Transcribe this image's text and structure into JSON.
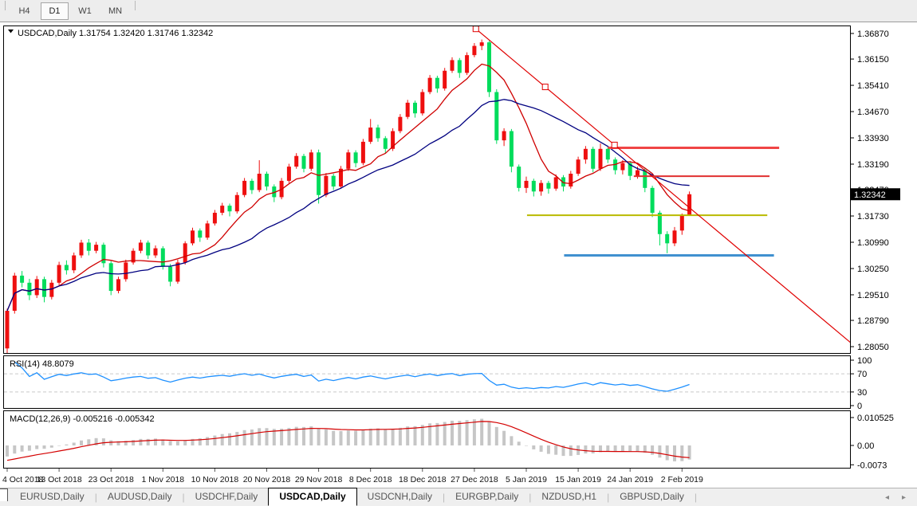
{
  "toolbar": {
    "timeframes": [
      {
        "label": "H4",
        "active": false
      },
      {
        "label": "D1",
        "active": true
      },
      {
        "label": "W1",
        "active": false
      },
      {
        "label": "MN",
        "active": false
      }
    ]
  },
  "window": {
    "title_line": "USDCAD,Daily  1.31754 1.32420 1.31746 1.32342"
  },
  "chart_data": {
    "type": "candlestick",
    "symbol": "USDCAD",
    "period": "Daily",
    "ohlc_display": {
      "open": "1.31754",
      "high": "1.32420",
      "low": "1.31746",
      "close": "1.32342"
    },
    "colors": {
      "up": "#ee0f0f",
      "down": "#00dc5c",
      "sma_fast": "#cf0000",
      "sma_slow": "#000080",
      "rsi": "#1e90ff",
      "rsi_level": "#c9c9c9",
      "macd_bar": "#c6c6c6",
      "macd_signal": "#d40000",
      "trendline": "#e00000",
      "price_tag_bg": "#000000",
      "price_tag_text": "#ffffff"
    },
    "price_axis": {
      "ticks": [
        "1.36870",
        "1.36150",
        "1.35410",
        "1.34670",
        "1.33930",
        "1.33190",
        "1.32470",
        "1.31730",
        "1.30990",
        "1.30250",
        "1.29510",
        "1.28790",
        "1.28050"
      ],
      "current": 1.32342,
      "current_label": "1.32342"
    },
    "date_axis": {
      "labels": [
        "4 Oct 2018",
        "13 Oct 2018",
        "23 Oct 2018",
        "1 Nov 2018",
        "10 Nov 2018",
        "20 Nov 2018",
        "29 Nov 2018",
        "8 Dec 2018",
        "18 Dec 2018",
        "27 Dec 2018",
        "5 Jan 2019",
        "15 Jan 2019",
        "24 Jan 2019",
        "2 Feb 2019"
      ],
      "bars_per_tick": 7
    },
    "candles": [
      [
        1.28,
        1.2912,
        1.2778,
        1.2906
      ],
      [
        1.2906,
        1.3013,
        1.2898,
        1.3005
      ],
      [
        1.3005,
        1.3018,
        1.2972,
        1.2985
      ],
      [
        1.2985,
        1.2996,
        1.2936,
        1.295
      ],
      [
        1.295,
        1.3004,
        1.2942,
        1.2995
      ],
      [
        1.2995,
        1.3002,
        1.293,
        1.2945
      ],
      [
        1.2945,
        1.2993,
        1.2938,
        1.2985
      ],
      [
        1.2985,
        1.3044,
        1.2978,
        1.3035
      ],
      [
        1.3035,
        1.3048,
        1.3008,
        1.302
      ],
      [
        1.302,
        1.307,
        1.3012,
        1.3062
      ],
      [
        1.3062,
        1.3106,
        1.3055,
        1.3098
      ],
      [
        1.3098,
        1.3108,
        1.3062,
        1.3075
      ],
      [
        1.3075,
        1.31,
        1.3068,
        1.3092
      ],
      [
        1.3092,
        1.3098,
        1.3028,
        1.304
      ],
      [
        1.304,
        1.3046,
        1.295,
        1.2962
      ],
      [
        1.2962,
        1.3002,
        1.2955,
        1.2995
      ],
      [
        1.2995,
        1.305,
        1.2988,
        1.3042
      ],
      [
        1.3042,
        1.3082,
        1.3036,
        1.3075
      ],
      [
        1.3075,
        1.3106,
        1.3068,
        1.3098
      ],
      [
        1.3098,
        1.3104,
        1.3052,
        1.3062
      ],
      [
        1.3062,
        1.309,
        1.3055,
        1.3082
      ],
      [
        1.3082,
        1.3088,
        1.3022,
        1.303
      ],
      [
        1.303,
        1.3038,
        1.2975,
        1.2988
      ],
      [
        1.2988,
        1.305,
        1.2982,
        1.3042
      ],
      [
        1.3042,
        1.3102,
        1.3036,
        1.3096
      ],
      [
        1.3096,
        1.314,
        1.309,
        1.3132
      ],
      [
        1.3132,
        1.3138,
        1.31,
        1.3112
      ],
      [
        1.3112,
        1.316,
        1.3106,
        1.3152
      ],
      [
        1.3152,
        1.319,
        1.3146,
        1.3182
      ],
      [
        1.3182,
        1.321,
        1.3175,
        1.3202
      ],
      [
        1.3202,
        1.3208,
        1.3172,
        1.3186
      ],
      [
        1.3186,
        1.324,
        1.318,
        1.3232
      ],
      [
        1.3232,
        1.328,
        1.3226,
        1.3272
      ],
      [
        1.3272,
        1.3278,
        1.3235,
        1.3246
      ],
      [
        1.3246,
        1.333,
        1.324,
        1.3292
      ],
      [
        1.3292,
        1.3298,
        1.3245,
        1.3256
      ],
      [
        1.3256,
        1.3262,
        1.3212,
        1.3226
      ],
      [
        1.3226,
        1.328,
        1.322,
        1.3272
      ],
      [
        1.3272,
        1.332,
        1.3266,
        1.3312
      ],
      [
        1.3312,
        1.335,
        1.3306,
        1.3342
      ],
      [
        1.3342,
        1.3348,
        1.3296,
        1.3306
      ],
      [
        1.3306,
        1.336,
        1.33,
        1.3352
      ],
      [
        1.3352,
        1.336,
        1.3208,
        1.3232
      ],
      [
        1.3232,
        1.3294,
        1.3226,
        1.3286
      ],
      [
        1.3286,
        1.3292,
        1.3246,
        1.3256
      ],
      [
        1.3256,
        1.3314,
        1.325,
        1.3306
      ],
      [
        1.3306,
        1.336,
        1.33,
        1.3352
      ],
      [
        1.3352,
        1.3358,
        1.331,
        1.3322
      ],
      [
        1.3322,
        1.339,
        1.3316,
        1.3382
      ],
      [
        1.3382,
        1.3446,
        1.3376,
        1.3422
      ],
      [
        1.3422,
        1.343,
        1.3382,
        1.3392
      ],
      [
        1.3392,
        1.3398,
        1.335,
        1.3362
      ],
      [
        1.3362,
        1.342,
        1.3356,
        1.3412
      ],
      [
        1.3412,
        1.346,
        1.3406,
        1.3452
      ],
      [
        1.3452,
        1.35,
        1.3446,
        1.3492
      ],
      [
        1.3492,
        1.3498,
        1.345,
        1.3462
      ],
      [
        1.3462,
        1.353,
        1.3456,
        1.3522
      ],
      [
        1.3522,
        1.357,
        1.3516,
        1.3562
      ],
      [
        1.3562,
        1.3568,
        1.352,
        1.3532
      ],
      [
        1.3532,
        1.359,
        1.3526,
        1.3582
      ],
      [
        1.3582,
        1.362,
        1.3576,
        1.3612
      ],
      [
        1.3612,
        1.3618,
        1.3562,
        1.3576
      ],
      [
        1.3576,
        1.3634,
        1.357,
        1.3626
      ],
      [
        1.3626,
        1.366,
        1.362,
        1.3652
      ],
      [
        1.3652,
        1.367,
        1.364,
        1.3662
      ],
      [
        1.3662,
        1.3666,
        1.3508,
        1.3522
      ],
      [
        1.3522,
        1.353,
        1.3376,
        1.3386
      ],
      [
        1.3386,
        1.342,
        1.337,
        1.3412
      ],
      [
        1.3412,
        1.3418,
        1.3296,
        1.3312
      ],
      [
        1.3312,
        1.3318,
        1.3242,
        1.3252
      ],
      [
        1.3252,
        1.3284,
        1.3238,
        1.3272
      ],
      [
        1.3272,
        1.3278,
        1.3228,
        1.3242
      ],
      [
        1.3242,
        1.3274,
        1.323,
        1.3266
      ],
      [
        1.3266,
        1.3272,
        1.3236,
        1.325
      ],
      [
        1.325,
        1.329,
        1.3244,
        1.3282
      ],
      [
        1.3282,
        1.3288,
        1.3242,
        1.3256
      ],
      [
        1.3256,
        1.33,
        1.325,
        1.3292
      ],
      [
        1.3292,
        1.334,
        1.3286,
        1.3332
      ],
      [
        1.3332,
        1.337,
        1.332,
        1.3362
      ],
      [
        1.3362,
        1.3368,
        1.3296,
        1.3306
      ],
      [
        1.3306,
        1.3377,
        1.33,
        1.3362
      ],
      [
        1.3362,
        1.3368,
        1.3322,
        1.3332
      ],
      [
        1.3332,
        1.3338,
        1.329,
        1.3302
      ],
      [
        1.3302,
        1.333,
        1.329,
        1.3322
      ],
      [
        1.3322,
        1.3328,
        1.3274,
        1.3286
      ],
      [
        1.3286,
        1.3312,
        1.3278,
        1.3302
      ],
      [
        1.3302,
        1.3308,
        1.324,
        1.3252
      ],
      [
        1.3252,
        1.3258,
        1.317,
        1.3182
      ],
      [
        1.3182,
        1.3188,
        1.309,
        1.3122
      ],
      [
        1.3122,
        1.313,
        1.3068,
        1.3096
      ],
      [
        1.3096,
        1.3142,
        1.3088,
        1.3132
      ],
      [
        1.3132,
        1.318,
        1.312,
        1.31754
      ],
      [
        1.31754,
        1.3242,
        1.31746,
        1.32342
      ]
    ],
    "overlays": {
      "sma_fast_period": 8,
      "sma_slow_period": 20,
      "trendline": {
        "points": [
          {
            "bar": 63.2,
            "price": 1.37
          },
          {
            "bar": 81.9,
            "price": 1.3373
          }
        ],
        "ray": true,
        "selected": true
      },
      "hlines": [
        {
          "price": 1.3365,
          "from_bar": 81.0,
          "to_bar": 104.1,
          "color": "#f04545",
          "width": 3
        },
        {
          "price": 1.3285,
          "from_bar": 84.5,
          "to_bar": 102.8,
          "color": "#e03030",
          "width": 2
        },
        {
          "price": 1.3175,
          "from_bar": 70.1,
          "to_bar": 102.5,
          "color": "#b9ba00",
          "width": 2
        },
        {
          "price": 1.3062,
          "from_bar": 75.1,
          "to_bar": 103.4,
          "color": "#4090d0",
          "width": 3
        }
      ]
    },
    "indicators": {
      "rsi": {
        "label_line": "RSI(14) 48.8079",
        "period": 14,
        "value": 48.8079,
        "levels": [
          70,
          30
        ],
        "axis_ticks": [
          "100",
          "70",
          "30",
          "0"
        ],
        "axis_values": [
          100,
          70,
          30,
          0
        ]
      },
      "macd": {
        "label_line": "MACD(12,26,9) -0.005216 -0.005342",
        "fast": 12,
        "slow": 26,
        "signal": 9,
        "macd_value": -0.005216,
        "signal_value": -0.005342,
        "axis_ticks": [
          "0.010525",
          "0.00",
          "-0.0073"
        ],
        "axis_values": [
          0.010525,
          0,
          -0.0073
        ]
      }
    }
  },
  "tabs": {
    "items": [
      {
        "label": "EURUSD,Daily",
        "active": false
      },
      {
        "label": "AUDUSD,Daily",
        "active": false
      },
      {
        "label": "USDCHF,Daily",
        "active": false
      },
      {
        "label": "USDCAD,Daily",
        "active": true
      },
      {
        "label": "USDCNH,Daily",
        "active": false
      },
      {
        "label": "EURGBP,Daily",
        "active": false
      },
      {
        "label": "NZDUSD,H1",
        "active": false
      },
      {
        "label": "GBPUSD,Daily",
        "active": false
      }
    ],
    "scroll_left_icon": "◂",
    "scroll_right_icon": "▸"
  }
}
